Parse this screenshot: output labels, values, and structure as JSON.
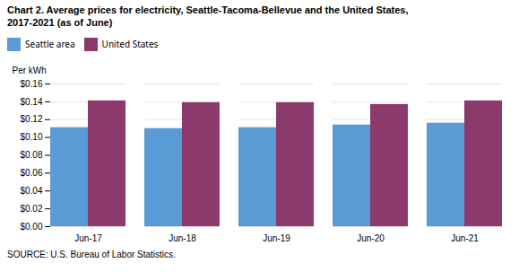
{
  "chart_data": {
    "type": "bar",
    "title": "Chart 2. Average prices for electricity, Seattle-Tacoma-Bellevue and the United States,\n2017-2021  (as of June)",
    "ylabel": "Per kWh",
    "caption": "SOURCE: U.S. Bureau of Labor Statistics.",
    "categories": [
      "Jun-17",
      "Jun-18",
      "Jun-19",
      "Jun-20",
      "Jun-21"
    ],
    "series": [
      {
        "name": "Seattle area",
        "color": "#5B9BD5",
        "values": [
          0.111,
          0.11,
          0.111,
          0.114,
          0.116
        ]
      },
      {
        "name": "United States",
        "color": "#8B3A6B",
        "values": [
          0.141,
          0.139,
          0.139,
          0.137,
          0.141
        ]
      }
    ],
    "ylim": [
      0,
      0.16
    ],
    "yticks": [
      {
        "value": 0.0,
        "label": "$0.00"
      },
      {
        "value": 0.02,
        "label": "$0.02"
      },
      {
        "value": 0.04,
        "label": "$0.04"
      },
      {
        "value": 0.06,
        "label": "$0.06"
      },
      {
        "value": 0.08,
        "label": "$0.08"
      },
      {
        "value": 0.1,
        "label": "$0.10"
      },
      {
        "value": 0.12,
        "label": "$0.12"
      },
      {
        "value": 0.14,
        "label": "$0.14"
      },
      {
        "value": 0.16,
        "label": "$0.16"
      }
    ],
    "grid": true,
    "legend": "upper left"
  }
}
